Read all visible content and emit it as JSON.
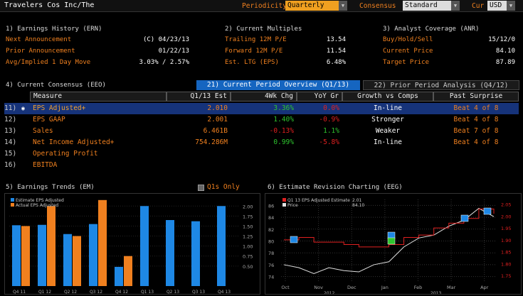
{
  "topbar": {
    "title": "Travelers Cos Inc/The",
    "periodicity_label": "Periodicity",
    "periodicity_value": "Quarterly",
    "consensus_label": "Consensus",
    "consensus_value": "Standard",
    "cur_label": "Cur",
    "cur_value": "USD"
  },
  "ern": {
    "title": "1) Earnings History (ERN)",
    "rows": [
      {
        "label": "Next Announcement",
        "value": "(C)  04/23/13"
      },
      {
        "label": "Prior Announcement",
        "value": "01/22/13"
      },
      {
        "label": "Avg/Implied 1 Day Move",
        "value": "3.03% / 2.57%"
      }
    ]
  },
  "mult": {
    "title": "2) Current Multiples",
    "rows": [
      {
        "label": "Trailing 12M P/E",
        "value": "13.54"
      },
      {
        "label": "Forward 12M P/E",
        "value": "11.54"
      },
      {
        "label": "Est. LTG (EPS)",
        "value": "6.48%"
      }
    ]
  },
  "anr": {
    "title": "3) Analyst Coverage (ANR)",
    "rows": [
      {
        "label": "Buy/Hold/Sell",
        "value": "15/12/0"
      },
      {
        "label": "Current Price",
        "value": "84.10"
      },
      {
        "label": "Target Price",
        "value": "87.89"
      }
    ]
  },
  "eeo": {
    "title": "4) Current Consensus (EEO)",
    "tab1": "21) Current Period Overview (Q1/13)",
    "tab2": "22) Prior Period Analysis (Q4/12)",
    "headers": [
      "Measure",
      "Q1/13 Est",
      "4Wk Chg",
      "YoY Gr",
      "Growth vs Comps",
      "Past Surprise"
    ],
    "rows": [
      {
        "num": "11)",
        "measure": "EPS Adjusted+",
        "est": "2.010",
        "chg": "3.36%",
        "yoy": "0.0%",
        "growth": "In-line",
        "surprise": "Beat 4 of 8"
      },
      {
        "num": "12)",
        "measure": "EPS GAAP",
        "est": "2.001",
        "chg": "1.40%",
        "yoy": "-0.9%",
        "growth": "Stronger",
        "surprise": "Beat 4 of 8"
      },
      {
        "num": "13)",
        "measure": "Sales",
        "est": "6.461B",
        "chg": "-0.13%",
        "yoy": "1.1%",
        "growth": "Weaker",
        "surprise": "Beat 7 of 8"
      },
      {
        "num": "14)",
        "measure": "Net Income Adjusted+",
        "est": "754.286M",
        "chg": "0.99%",
        "yoy": "-5.8%",
        "growth": "In-line",
        "surprise": "Beat 4 of 8"
      },
      {
        "num": "15)",
        "measure": "Operating Profit",
        "est": "",
        "chg": "",
        "yoy": "",
        "growth": "",
        "surprise": ""
      },
      {
        "num": "16)",
        "measure": "EBITDA",
        "est": "",
        "chg": "",
        "yoy": "",
        "growth": "",
        "surprise": ""
      }
    ]
  },
  "em": {
    "title": "5) Earnings Trends (EM)",
    "q1s_label": "Q1s Only",
    "legend_est": "Estimate EPS Adjusted",
    "legend_act": "Actual EPS Adjusted",
    "colors": {
      "estimate": "#1e88e5",
      "actual": "#f0801f"
    }
  },
  "eeg": {
    "title": "6) Estimate Revision Charting (EEG)",
    "legend1": "Q1 13 EPS Adjusted Estimate",
    "legend1_val": "2.01",
    "legend2": "Price",
    "legend2_val": "84.10",
    "colors": {
      "estimate": "#e02020",
      "price": "#e0e0e0"
    },
    "x_labels": [
      "Oct",
      "Nov",
      "Dec",
      "Jan",
      "Feb",
      "Mar",
      "Apr"
    ],
    "x_years": [
      "2012",
      "2013"
    ],
    "left_ticks": [
      "86",
      "84",
      "82",
      "80",
      "78",
      "76",
      "74"
    ],
    "right_ticks": [
      "2.05",
      "2.00",
      "1.95",
      "1.90",
      "1.85",
      "1.80",
      "1.75"
    ]
  },
  "chart_data": [
    {
      "type": "bar",
      "title": "",
      "categories": [
        "Q4 11",
        "Q1 12",
        "Q2 12",
        "Q3 12",
        "Q4 12",
        "Q1 13",
        "Q2 13",
        "Q3 13",
        "Q4 13"
      ],
      "series": [
        {
          "name": "Estimate EPS Adjusted",
          "values": [
            1.52,
            1.53,
            1.3,
            1.55,
            0.48,
            2.0,
            1.65,
            1.62,
            2.0
          ]
        },
        {
          "name": "Actual EPS Adjusted",
          "values": [
            1.5,
            2.0,
            1.25,
            2.15,
            0.75,
            null,
            null,
            null,
            null
          ]
        }
      ],
      "ylim": [
        0,
        2.2
      ],
      "yticks": [
        "0.50",
        "0.75",
        "1.00",
        "1.25",
        "1.50",
        "1.75",
        "2.00"
      ]
    },
    {
      "type": "line",
      "title": "",
      "x_labels": [
        "Oct",
        "Nov",
        "Dec",
        "Jan",
        "Feb",
        "Mar",
        "Apr"
      ],
      "series": [
        {
          "name": "Q1 13 EPS Adjusted Estimate",
          "axis": "right",
          "values": [
            1.9,
            1.91,
            1.89,
            1.89,
            1.88,
            1.87,
            1.87,
            1.88,
            1.91,
            1.92,
            1.95,
            1.97,
            1.99,
            2.03,
            2.01
          ]
        },
        {
          "name": "Price",
          "axis": "left",
          "values": [
            76,
            75.5,
            74.5,
            75.5,
            75,
            74.8,
            76,
            76.5,
            79,
            80.5,
            81,
            82.5,
            83.5,
            85.5,
            84.1
          ]
        }
      ],
      "ylim_left": [
        73,
        87
      ],
      "ylim_right": [
        1.72,
        2.07
      ]
    }
  ]
}
